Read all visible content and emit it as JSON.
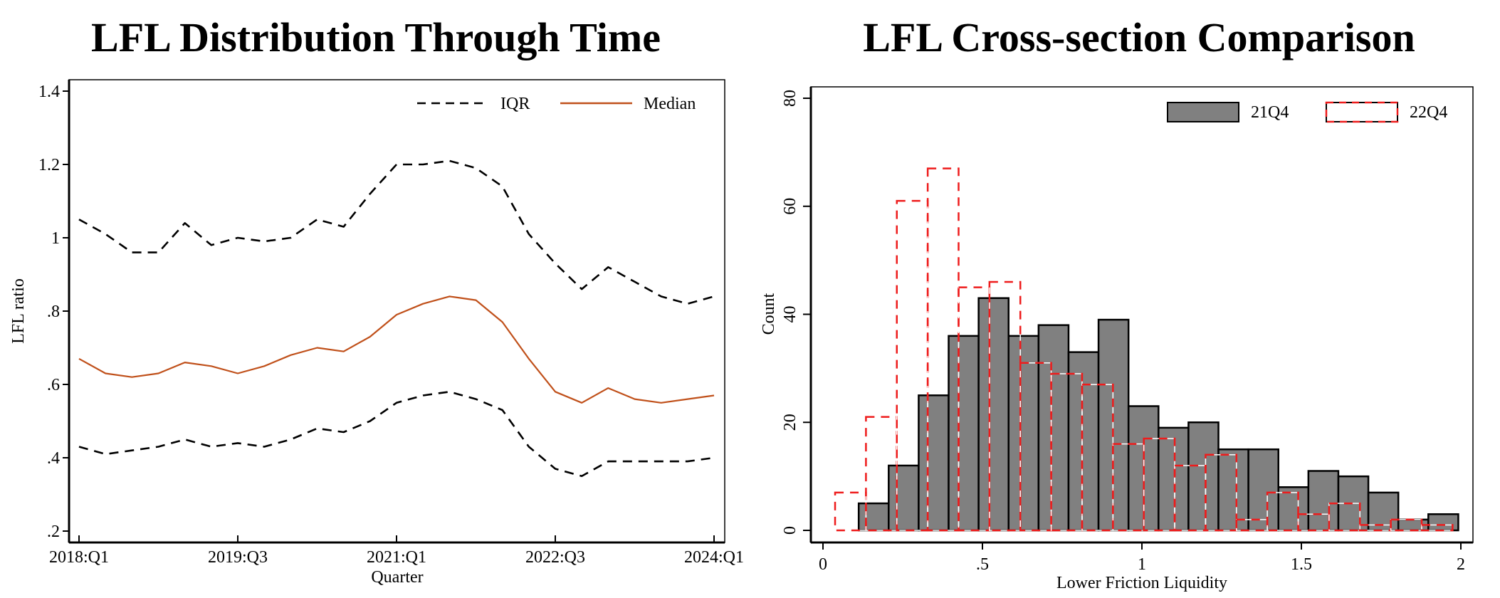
{
  "chart_data": [
    {
      "type": "line",
      "title": "LFL Distribution Through Time",
      "xlabel": "Quarter",
      "ylabel": "LFL ratio",
      "ylim": [
        0.2,
        1.4
      ],
      "yticks": [
        {
          "value": 1.4,
          "label": "1.4"
        },
        {
          "value": 1.2,
          "label": "1.2"
        },
        {
          "value": 1.0,
          "label": "1"
        },
        {
          "value": 0.8,
          "label": ".8"
        },
        {
          "value": 0.6,
          "label": ".6"
        },
        {
          "value": 0.4,
          "label": ".4"
        },
        {
          "value": 0.2,
          "label": ".2"
        }
      ],
      "xticks": [
        {
          "index": 0,
          "label": "2018:Q1"
        },
        {
          "index": 6,
          "label": "2019:Q3"
        },
        {
          "index": 12,
          "label": "2021:Q1"
        },
        {
          "index": 18,
          "label": "2022:Q3"
        },
        {
          "index": 24,
          "label": "2024:Q1"
        }
      ],
      "x": [
        "2018:Q1",
        "2018:Q2",
        "2018:Q3",
        "2018:Q4",
        "2019:Q1",
        "2019:Q2",
        "2019:Q3",
        "2019:Q4",
        "2020:Q1",
        "2020:Q2",
        "2020:Q3",
        "2020:Q4",
        "2021:Q1",
        "2021:Q2",
        "2021:Q3",
        "2021:Q4",
        "2022:Q1",
        "2022:Q2",
        "2022:Q3",
        "2022:Q4",
        "2023:Q1",
        "2023:Q2",
        "2023:Q3",
        "2023:Q4",
        "2024:Q1"
      ],
      "series": [
        {
          "name": "IQR upper",
          "legend": "IQR",
          "style": "dashed",
          "color": "#000000",
          "values": [
            1.05,
            1.01,
            0.96,
            0.96,
            1.04,
            0.98,
            1.0,
            0.99,
            1.0,
            1.05,
            1.03,
            1.12,
            1.2,
            1.2,
            1.21,
            1.19,
            1.14,
            1.01,
            0.93,
            0.86,
            0.92,
            0.88,
            0.84,
            0.82,
            0.84
          ]
        },
        {
          "name": "Median",
          "legend": "Median",
          "style": "solid",
          "color": "#c0501a",
          "values": [
            0.67,
            0.63,
            0.62,
            0.63,
            0.66,
            0.65,
            0.63,
            0.65,
            0.68,
            0.7,
            0.69,
            0.73,
            0.79,
            0.82,
            0.84,
            0.83,
            0.77,
            0.67,
            0.58,
            0.55,
            0.59,
            0.56,
            0.55,
            0.56,
            0.57
          ]
        },
        {
          "name": "IQR lower",
          "legend": "IQR",
          "style": "dashed",
          "color": "#000000",
          "values": [
            0.43,
            0.41,
            0.42,
            0.43,
            0.45,
            0.43,
            0.44,
            0.43,
            0.45,
            0.48,
            0.47,
            0.5,
            0.55,
            0.57,
            0.58,
            0.56,
            0.53,
            0.43,
            0.37,
            0.35,
            0.39,
            0.39,
            0.39,
            0.39,
            0.4
          ]
        }
      ],
      "legend": {
        "placement": "top-right",
        "entries": [
          {
            "label": "IQR",
            "style": "dashed",
            "color": "#000000"
          },
          {
            "label": "Median",
            "style": "solid",
            "color": "#c0501a"
          }
        ]
      },
      "grid": false
    },
    {
      "type": "bar",
      "subtype": "histogram",
      "title": "LFL Cross-section Comparison",
      "xlabel": "Lower Friction Liquidity",
      "ylabel": "Count",
      "xlim": [
        0,
        2
      ],
      "ylim": [
        0,
        80
      ],
      "xticks": [
        {
          "value": 0,
          "label": "0"
        },
        {
          "value": 0.5,
          "label": ".5"
        },
        {
          "value": 1,
          "label": "1"
        },
        {
          "value": 1.5,
          "label": "1.5"
        },
        {
          "value": 2,
          "label": "2"
        }
      ],
      "yticks": [
        {
          "value": 0,
          "label": "0"
        },
        {
          "value": 20,
          "label": "20"
        },
        {
          "value": 40,
          "label": "40"
        },
        {
          "value": 60,
          "label": "60"
        },
        {
          "value": 80,
          "label": "80"
        }
      ],
      "series": [
        {
          "name": "21Q4",
          "style": "filled",
          "fill": "#808080",
          "stroke": "#000000",
          "bin_start": 0.112,
          "bin_width": 0.094,
          "values": [
            5,
            12,
            25,
            36,
            43,
            36,
            38,
            33,
            39,
            23,
            19,
            20,
            15,
            15,
            8,
            11,
            10,
            7,
            2,
            3
          ]
        },
        {
          "name": "22Q4",
          "style": "dashed-outline",
          "fill": "none",
          "stroke": "#ee1c1c",
          "bin_start": 0.038,
          "bin_width": 0.0968,
          "values": [
            7,
            21,
            61,
            67,
            45,
            46,
            31,
            29,
            27,
            16,
            17,
            12,
            14,
            2,
            7,
            3,
            5,
            1,
            2,
            1
          ]
        }
      ],
      "legend": {
        "placement": "top-right",
        "entries": [
          {
            "label": "21Q4",
            "fill": "#808080"
          },
          {
            "label": "22Q4",
            "fill": "#ffffff",
            "stroke": "#ee1c1c"
          }
        ]
      },
      "grid": false
    }
  ]
}
